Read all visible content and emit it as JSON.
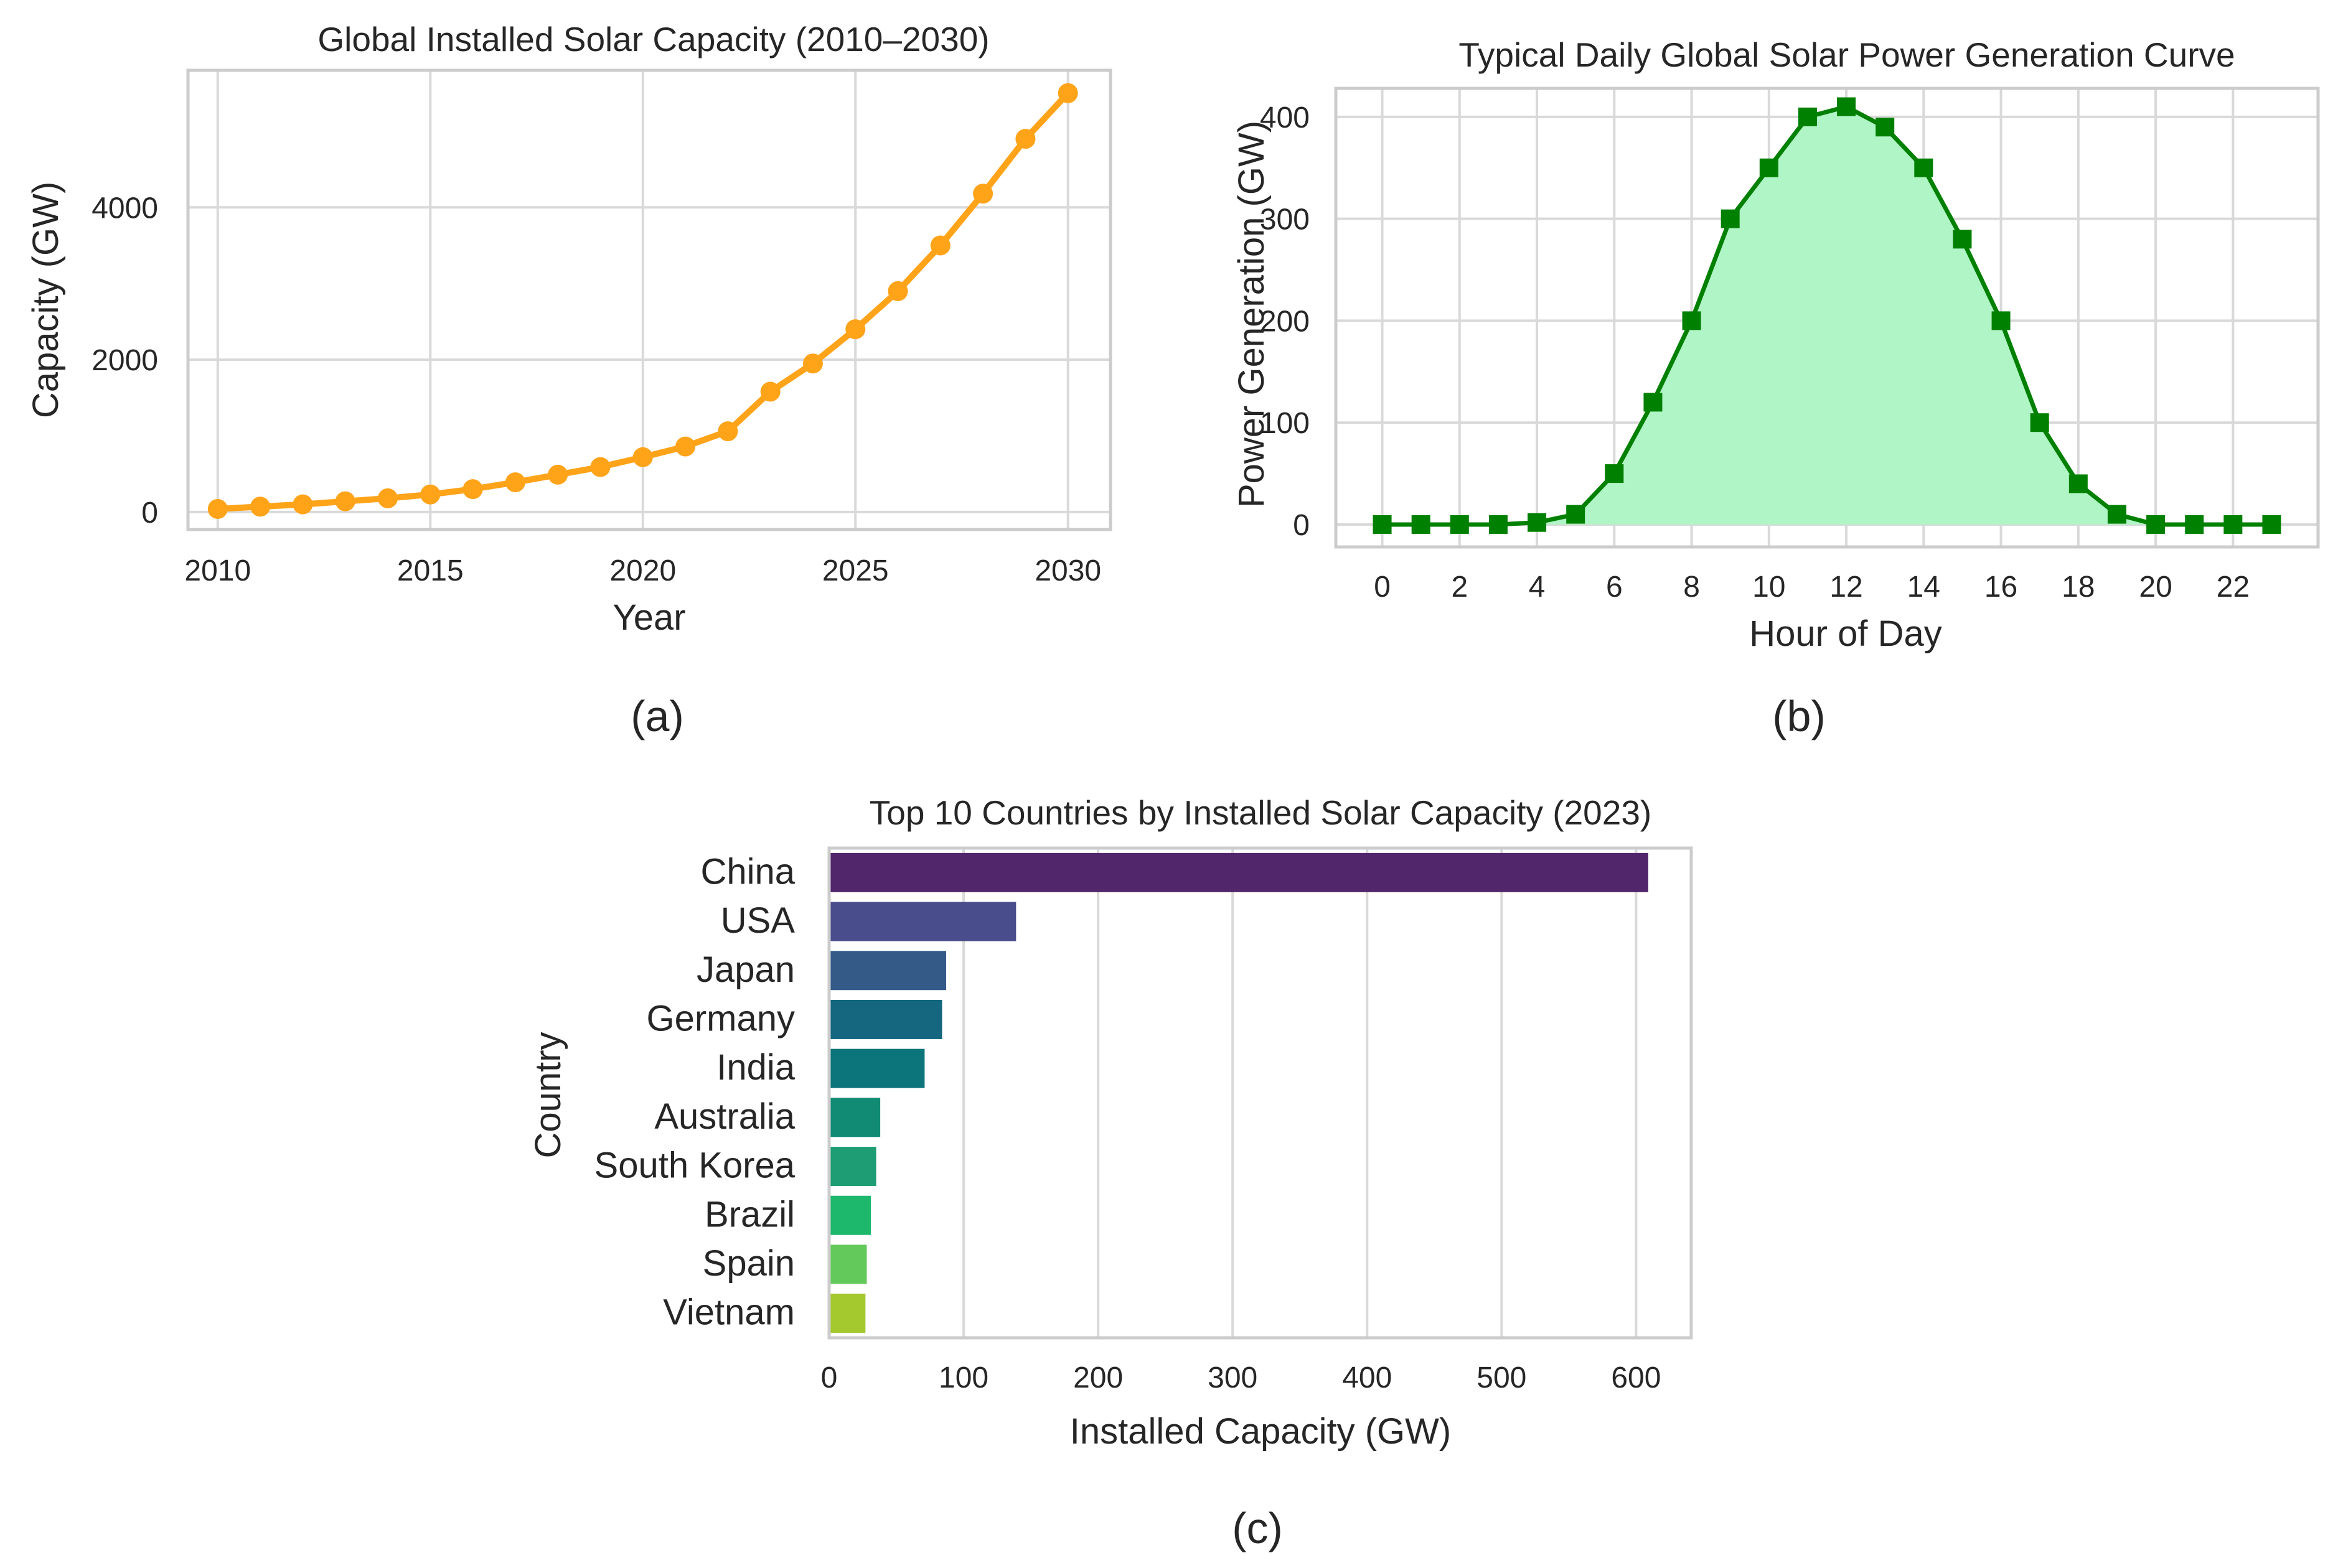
{
  "panels": [
    {
      "label": "(a)"
    },
    {
      "label": "(b)"
    },
    {
      "label": "(c)"
    }
  ],
  "chart_data": [
    {
      "type": "line",
      "title": "Global Installed Solar Capacity (2010–2030)",
      "xlabel": "Year",
      "ylabel": "Capacity (GW)",
      "x": [
        2010,
        2011,
        2012,
        2013,
        2014,
        2015,
        2016,
        2017,
        2018,
        2019,
        2020,
        2021,
        2022,
        2023,
        2024,
        2025,
        2026,
        2027,
        2028,
        2029,
        2030
      ],
      "series": [
        {
          "values": [
            40,
            70,
            100,
            140,
            180,
            230,
            300,
            390,
            490,
            590,
            720,
            860,
            1060,
            1580,
            1950,
            2400,
            2900,
            3500,
            4180,
            4900,
            5500
          ],
          "color": "#ffa319",
          "marker": "circle"
        }
      ],
      "xlim": [
        2009.3,
        2031.0
      ],
      "ylim": [
        -230,
        5800
      ],
      "xticks": [
        2010,
        2015,
        2020,
        2025,
        2030
      ],
      "yticks": [
        0,
        2000,
        4000
      ],
      "grid": true
    },
    {
      "type": "area",
      "title": "Typical Daily Global Solar Power Generation Curve",
      "xlabel": "Hour of Day",
      "ylabel": "Power Generation (GW)",
      "x": [
        0,
        1,
        2,
        3,
        4,
        5,
        6,
        7,
        8,
        9,
        10,
        11,
        12,
        13,
        14,
        15,
        16,
        17,
        18,
        19,
        20,
        21,
        22,
        23
      ],
      "series": [
        {
          "values": [
            0,
            0,
            0,
            0,
            2,
            10,
            50,
            120,
            200,
            300,
            350,
            400,
            410,
            390,
            350,
            280,
            200,
            100,
            40,
            10,
            0,
            0,
            0,
            0
          ],
          "color": "#008000",
          "fill": "#b0f5c5",
          "marker": "square"
        }
      ],
      "xlim": [
        -1.2,
        24.2
      ],
      "ylim": [
        -22,
        428
      ],
      "xticks": [
        0,
        2,
        4,
        6,
        8,
        10,
        12,
        14,
        16,
        18,
        20,
        22
      ],
      "yticks": [
        0,
        100,
        200,
        300,
        400
      ],
      "grid": true
    },
    {
      "type": "bar",
      "orientation": "horizontal",
      "title": "Top 10 Countries by Installed Solar Capacity (2023)",
      "xlabel": "Installed Capacity (GW)",
      "ylabel": "Country",
      "categories": [
        "China",
        "USA",
        "Japan",
        "Germany",
        "India",
        "Australia",
        "South Korea",
        "Brazil",
        "Spain",
        "Vietnam"
      ],
      "values": [
        609,
        139,
        87,
        84,
        71,
        38,
        35,
        31,
        28,
        27
      ],
      "colors": [
        "#51266a",
        "#4a4d8b",
        "#345a88",
        "#14677f",
        "#0c757b",
        "#128b75",
        "#1e9d74",
        "#1db86c",
        "#63c95b",
        "#a4c92e"
      ],
      "xlim": [
        0,
        641
      ],
      "xticks": [
        0,
        100,
        200,
        300,
        400,
        500,
        600
      ],
      "grid": true
    }
  ]
}
